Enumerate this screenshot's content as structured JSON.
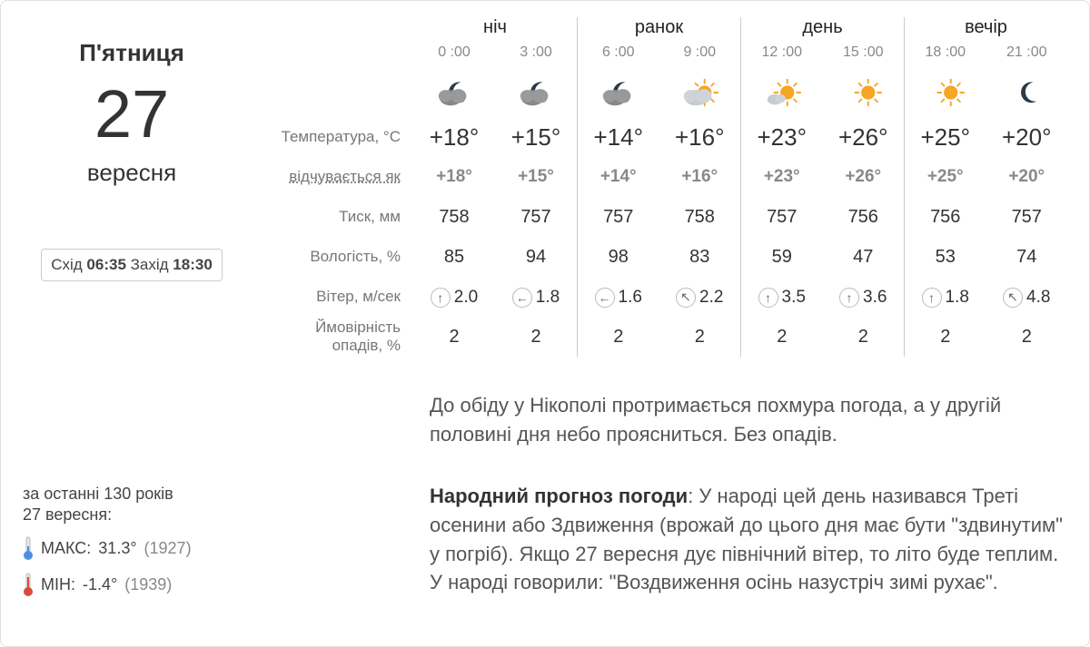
{
  "date": {
    "weekday": "П'ятниця",
    "day_number": "27",
    "month": "вересня"
  },
  "sun": {
    "rise_label": "Схід",
    "rise_time": "06:35",
    "set_label": "Захід",
    "set_time": "18:30"
  },
  "records": {
    "intro_line1": "за останні 130 років",
    "intro_line2": "27 вересня:",
    "max_label": "МАКС:",
    "max_value": "31.3°",
    "max_year": "(1927)",
    "min_label": "МІН:",
    "min_value": "-1.4°",
    "min_year": "(1939)"
  },
  "row_labels": {
    "temp": "Температура, °C",
    "feels": "відчувається як",
    "pressure": "Тиск, мм",
    "humidity": "Вологість, %",
    "wind": "Вітер, м/сек",
    "precip_l1": "Ймовірність",
    "precip_l2": "опадів, %"
  },
  "periods": [
    {
      "title": "ніч",
      "hours": [
        {
          "time": "0 :00",
          "icon": "cloud-moon",
          "temp": "+18°",
          "feels": "+18°",
          "pressure": "758",
          "humidity": "85",
          "wind_dir": "up",
          "wind": "2.0",
          "precip": "2"
        },
        {
          "time": "3 :00",
          "icon": "cloud-moon",
          "temp": "+15°",
          "feels": "+15°",
          "pressure": "757",
          "humidity": "94",
          "wind_dir": "left",
          "wind": "1.8",
          "precip": "2"
        }
      ]
    },
    {
      "title": "ранок",
      "hours": [
        {
          "time": "6 :00",
          "icon": "cloud-moon",
          "temp": "+14°",
          "feels": "+14°",
          "pressure": "757",
          "humidity": "98",
          "wind_dir": "left",
          "wind": "1.6",
          "precip": "2"
        },
        {
          "time": "9 :00",
          "icon": "cloud-sun",
          "temp": "+16°",
          "feels": "+16°",
          "pressure": "758",
          "humidity": "83",
          "wind_dir": "up-left",
          "wind": "2.2",
          "precip": "2"
        }
      ]
    },
    {
      "title": "день",
      "hours": [
        {
          "time": "12 :00",
          "icon": "sun-small-cloud",
          "temp": "+23°",
          "feels": "+23°",
          "pressure": "757",
          "humidity": "59",
          "wind_dir": "up",
          "wind": "3.5",
          "precip": "2"
        },
        {
          "time": "15 :00",
          "icon": "sun",
          "temp": "+26°",
          "feels": "+26°",
          "pressure": "756",
          "humidity": "47",
          "wind_dir": "up",
          "wind": "3.6",
          "precip": "2"
        }
      ]
    },
    {
      "title": "вечір",
      "hours": [
        {
          "time": "18 :00",
          "icon": "sun",
          "temp": "+25°",
          "feels": "+25°",
          "pressure": "756",
          "humidity": "53",
          "wind_dir": "up",
          "wind": "1.8",
          "precip": "2"
        },
        {
          "time": "21 :00",
          "icon": "moon",
          "temp": "+20°",
          "feels": "+20°",
          "pressure": "757",
          "humidity": "74",
          "wind_dir": "up-left",
          "wind": "4.8",
          "precip": "2"
        }
      ]
    }
  ],
  "summary_text": "До обіду у Нікополі протримається похмура погода, а у другій половині дня небо проясниться. Без опадів.",
  "folk": {
    "label": "Народний прогноз погоди",
    "text": ": У народі цей день називався Треті осенини або Здвиження (врожай до цього дня має бути \"здвинутим\" у погріб). Якщо 27 вересня дує північний вітер, то літо буде теплим. У народі говорили: \"Воздвиження осінь назустріч зимі рухає\"."
  },
  "colors": {
    "border": "#e0e0e0",
    "text_muted": "#888888",
    "text": "#333333",
    "sun": "#f5a623",
    "cloud": "#9aa0a6",
    "moon": "#3b4a5a",
    "therm_cold": "#4a90e2",
    "therm_hot": "#d94c3d"
  }
}
